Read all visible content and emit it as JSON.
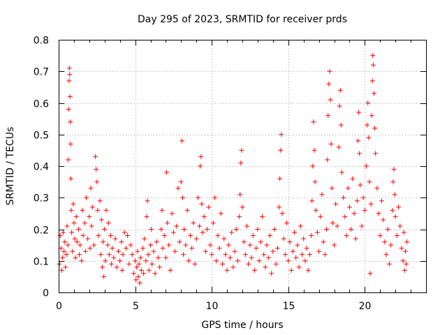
{
  "chart_data": {
    "type": "scatter",
    "title": "Day 295 of 2023, SRMTID for receiver prds",
    "xlabel": "GPS time / hours",
    "ylabel": "SRMTID / TECUs",
    "xlim": [
      0,
      24
    ],
    "ylim": [
      0,
      0.8
    ],
    "x_ticks": [
      0,
      5,
      10,
      15,
      20
    ],
    "x_tick_labels": [
      "0",
      "5",
      "10",
      "15",
      "20"
    ],
    "y_ticks": [
      0,
      0.1,
      0.2,
      0.3,
      0.4,
      0.5,
      0.6,
      0.7,
      0.8
    ],
    "y_tick_labels": [
      "0",
      "0.1",
      "0.2",
      "0.3",
      "0.4",
      "0.5",
      "0.6",
      "0.7",
      "0.8"
    ],
    "grid": true,
    "marker": "plus",
    "color": "#ff0000",
    "series": [
      {
        "name": "SRMTID",
        "points": [
          [
            0.05,
            0.09
          ],
          [
            0.1,
            0.18
          ],
          [
            0.15,
            0.14
          ],
          [
            0.2,
            0.07
          ],
          [
            0.25,
            0.11
          ],
          [
            0.3,
            0.19
          ],
          [
            0.35,
            0.13
          ],
          [
            0.4,
            0.16
          ],
          [
            0.45,
            0.08
          ],
          [
            0.5,
            0.12
          ],
          [
            0.55,
            0.21
          ],
          [
            0.6,
            0.15
          ],
          [
            0.62,
            0.42
          ],
          [
            0.65,
            0.58
          ],
          [
            0.68,
            0.67
          ],
          [
            0.7,
            0.71
          ],
          [
            0.72,
            0.69
          ],
          [
            0.74,
            0.62
          ],
          [
            0.76,
            0.54
          ],
          [
            0.78,
            0.47
          ],
          [
            0.8,
            0.36
          ],
          [
            0.82,
            0.26
          ],
          [
            0.85,
            0.19
          ],
          [
            0.9,
            0.13
          ],
          [
            0.95,
            0.28
          ],
          [
            1.0,
            0.22
          ],
          [
            1.05,
            0.17
          ],
          [
            1.1,
            0.11
          ],
          [
            1.15,
            0.24
          ],
          [
            1.2,
            0.16
          ],
          [
            1.3,
            0.2
          ],
          [
            1.35,
            0.12
          ],
          [
            1.4,
            0.15
          ],
          [
            1.5,
            0.1
          ],
          [
            1.55,
            0.26
          ],
          [
            1.6,
            0.18
          ],
          [
            1.7,
            0.22
          ],
          [
            1.75,
            0.13
          ],
          [
            1.8,
            0.3
          ],
          [
            1.9,
            0.17
          ],
          [
            2.0,
            0.24
          ],
          [
            2.05,
            0.14
          ],
          [
            2.1,
            0.33
          ],
          [
            2.15,
            0.21
          ],
          [
            2.2,
            0.27
          ],
          [
            2.3,
            0.15
          ],
          [
            2.4,
            0.43
          ],
          [
            2.45,
            0.39
          ],
          [
            2.5,
            0.35
          ],
          [
            2.55,
            0.26
          ],
          [
            2.6,
            0.18
          ],
          [
            2.7,
            0.29
          ],
          [
            2.75,
            0.12
          ],
          [
            2.8,
            0.23
          ],
          [
            2.85,
            0.08
          ],
          [
            2.9,
            0.16
          ],
          [
            2.95,
            0.05
          ],
          [
            3.0,
            0.2
          ],
          [
            3.05,
            0.1
          ],
          [
            3.1,
            0.26
          ],
          [
            3.2,
            0.15
          ],
          [
            3.25,
            0.22
          ],
          [
            3.3,
            0.12
          ],
          [
            3.4,
            0.18
          ],
          [
            3.45,
            0.09
          ],
          [
            3.5,
            0.14
          ],
          [
            3.6,
            0.11
          ],
          [
            3.7,
            0.17
          ],
          [
            3.8,
            0.08
          ],
          [
            3.9,
            0.13
          ],
          [
            4.0,
            0.1
          ],
          [
            4.1,
            0.16
          ],
          [
            4.15,
            0.07
          ],
          [
            4.2,
            0.12
          ],
          [
            4.3,
            0.19
          ],
          [
            4.4,
            0.14
          ],
          [
            4.5,
            0.18
          ],
          [
            4.6,
            0.09
          ],
          [
            4.7,
            0.15
          ],
          [
            4.8,
            0.12
          ],
          [
            4.9,
            0.06
          ],
          [
            5.0,
            0.1
          ],
          [
            5.05,
            0.04
          ],
          [
            5.1,
            0.08
          ],
          [
            5.15,
            0.13
          ],
          [
            5.2,
            0.05
          ],
          [
            5.25,
            0.09
          ],
          [
            5.3,
            0.03
          ],
          [
            5.35,
            0.11
          ],
          [
            5.4,
            0.07
          ],
          [
            5.5,
            0.14
          ],
          [
            5.55,
            0.06
          ],
          [
            5.6,
            0.17
          ],
          [
            5.7,
            0.1
          ],
          [
            5.75,
            0.24
          ],
          [
            5.8,
            0.29
          ],
          [
            5.85,
            0.12
          ],
          [
            5.9,
            0.07
          ],
          [
            6.0,
            0.15
          ],
          [
            6.05,
            0.2
          ],
          [
            6.1,
            0.09
          ],
          [
            6.2,
            0.13
          ],
          [
            6.3,
            0.06
          ],
          [
            6.4,
            0.16
          ],
          [
            6.5,
            0.11
          ],
          [
            6.6,
            0.08
          ],
          [
            6.7,
            0.2
          ],
          [
            6.75,
            0.26
          ],
          [
            6.8,
            0.14
          ],
          [
            6.9,
            0.18
          ],
          [
            7.0,
            0.11
          ],
          [
            7.05,
            0.38
          ],
          [
            7.1,
            0.22
          ],
          [
            7.2,
            0.15
          ],
          [
            7.3,
            0.07
          ],
          [
            7.4,
            0.25
          ],
          [
            7.5,
            0.19
          ],
          [
            7.6,
            0.13
          ],
          [
            7.7,
            0.21
          ],
          [
            7.8,
            0.33
          ],
          [
            7.9,
            0.16
          ],
          [
            8.0,
            0.35
          ],
          [
            8.05,
            0.48
          ],
          [
            8.1,
            0.3
          ],
          [
            8.15,
            0.12
          ],
          [
            8.2,
            0.2
          ],
          [
            8.3,
            0.15
          ],
          [
            8.4,
            0.26
          ],
          [
            8.5,
            0.1
          ],
          [
            8.6,
            0.18
          ],
          [
            8.7,
            0.14
          ],
          [
            8.8,
            0.22
          ],
          [
            8.9,
            0.09
          ],
          [
            9.0,
            0.17
          ],
          [
            9.1,
            0.3
          ],
          [
            9.2,
            0.21
          ],
          [
            9.25,
            0.4
          ],
          [
            9.3,
            0.43
          ],
          [
            9.35,
            0.28
          ],
          [
            9.4,
            0.19
          ],
          [
            9.5,
            0.24
          ],
          [
            9.6,
            0.13
          ],
          [
            9.7,
            0.2
          ],
          [
            9.8,
            0.27
          ],
          [
            9.9,
            0.15
          ],
          [
            10.0,
            0.12
          ],
          [
            10.1,
            0.22
          ],
          [
            10.2,
            0.3
          ],
          [
            10.3,
            0.1
          ],
          [
            10.4,
            0.18
          ],
          [
            10.5,
            0.14
          ],
          [
            10.6,
            0.25
          ],
          [
            10.7,
            0.09
          ],
          [
            10.8,
            0.17
          ],
          [
            10.9,
            0.12
          ],
          [
            11.0,
            0.07
          ],
          [
            11.1,
            0.15
          ],
          [
            11.2,
            0.11
          ],
          [
            11.3,
            0.19
          ],
          [
            11.4,
            0.08
          ],
          [
            11.5,
            0.13
          ],
          [
            11.6,
            0.2
          ],
          [
            11.7,
            0.1
          ],
          [
            11.8,
            0.24
          ],
          [
            11.85,
            0.31
          ],
          [
            11.9,
            0.41
          ],
          [
            11.95,
            0.45
          ],
          [
            12.0,
            0.27
          ],
          [
            12.1,
            0.16
          ],
          [
            12.2,
            0.12
          ],
          [
            12.3,
            0.21
          ],
          [
            12.4,
            0.09
          ],
          [
            12.5,
            0.15
          ],
          [
            12.6,
            0.11
          ],
          [
            12.7,
            0.18
          ],
          [
            12.8,
            0.07
          ],
          [
            12.9,
            0.14
          ],
          [
            13.0,
            0.2
          ],
          [
            13.1,
            0.1
          ],
          [
            13.2,
            0.16
          ],
          [
            13.3,
            0.24
          ],
          [
            13.4,
            0.12
          ],
          [
            13.5,
            0.08
          ],
          [
            13.6,
            0.15
          ],
          [
            13.7,
            0.11
          ],
          [
            13.8,
            0.18
          ],
          [
            13.9,
            0.06
          ],
          [
            14.0,
            0.13
          ],
          [
            14.1,
            0.2
          ],
          [
            14.2,
            0.09
          ],
          [
            14.3,
            0.14
          ],
          [
            14.4,
            0.27
          ],
          [
            14.45,
            0.36
          ],
          [
            14.5,
            0.45
          ],
          [
            14.55,
            0.5
          ],
          [
            14.6,
            0.25
          ],
          [
            14.7,
            0.17
          ],
          [
            14.8,
            0.12
          ],
          [
            14.9,
            0.22
          ],
          [
            15.0,
            0.1
          ],
          [
            15.1,
            0.16
          ],
          [
            15.2,
            0.07
          ],
          [
            15.3,
            0.13
          ],
          [
            15.4,
            0.19
          ],
          [
            15.5,
            0.11
          ],
          [
            15.6,
            0.15
          ],
          [
            15.7,
            0.08
          ],
          [
            15.8,
            0.21
          ],
          [
            15.9,
            0.12
          ],
          [
            16.0,
            0.17
          ],
          [
            16.1,
            0.1
          ],
          [
            16.2,
            0.14
          ],
          [
            16.3,
            0.07
          ],
          [
            16.4,
            0.12
          ],
          [
            16.5,
            0.18
          ],
          [
            16.55,
            0.29
          ],
          [
            16.6,
            0.4
          ],
          [
            16.65,
            0.54
          ],
          [
            16.7,
            0.45
          ],
          [
            16.75,
            0.35
          ],
          [
            16.8,
            0.26
          ],
          [
            16.9,
            0.19
          ],
          [
            17.0,
            0.13
          ],
          [
            17.1,
            0.24
          ],
          [
            17.2,
            0.31
          ],
          [
            17.3,
            0.16
          ],
          [
            17.4,
            0.12
          ],
          [
            17.5,
            0.2
          ],
          [
            17.55,
            0.42
          ],
          [
            17.6,
            0.56
          ],
          [
            17.65,
            0.66
          ],
          [
            17.7,
            0.7
          ],
          [
            17.75,
            0.61
          ],
          [
            17.8,
            0.47
          ],
          [
            17.85,
            0.33
          ],
          [
            17.9,
            0.22
          ],
          [
            18.0,
            0.15
          ],
          [
            18.1,
            0.28
          ],
          [
            18.2,
            0.21
          ],
          [
            18.3,
            0.46
          ],
          [
            18.35,
            0.59
          ],
          [
            18.4,
            0.64
          ],
          [
            18.45,
            0.53
          ],
          [
            18.5,
            0.38
          ],
          [
            18.6,
            0.3
          ],
          [
            18.7,
            0.24
          ],
          [
            18.8,
            0.18
          ],
          [
            18.9,
            0.33
          ],
          [
            19.0,
            0.27
          ],
          [
            19.1,
            0.2
          ],
          [
            19.2,
            0.36
          ],
          [
            19.3,
            0.25
          ],
          [
            19.4,
            0.17
          ],
          [
            19.5,
            0.29
          ],
          [
            19.55,
            0.48
          ],
          [
            19.6,
            0.57
          ],
          [
            19.65,
            0.44
          ],
          [
            19.7,
            0.34
          ],
          [
            19.8,
            0.21
          ],
          [
            19.9,
            0.3
          ],
          [
            20.0,
            0.26
          ],
          [
            20.1,
            0.4
          ],
          [
            20.15,
            0.53
          ],
          [
            20.2,
            0.6
          ],
          [
            20.25,
            0.49
          ],
          [
            20.3,
            0.35
          ],
          [
            20.35,
            0.06
          ],
          [
            20.4,
            0.28
          ],
          [
            20.45,
            0.56
          ],
          [
            20.5,
            0.67
          ],
          [
            20.52,
            0.75
          ],
          [
            20.55,
            0.72
          ],
          [
            20.6,
            0.63
          ],
          [
            20.65,
            0.52
          ],
          [
            20.7,
            0.44
          ],
          [
            20.8,
            0.33
          ],
          [
            20.9,
            0.25
          ],
          [
            21.0,
            0.18
          ],
          [
            21.1,
            0.29
          ],
          [
            21.2,
            0.23
          ],
          [
            21.3,
            0.16
          ],
          [
            21.4,
            0.12
          ],
          [
            21.5,
            0.2
          ],
          [
            21.6,
            0.09
          ],
          [
            21.7,
            0.15
          ],
          [
            21.8,
            0.26
          ],
          [
            21.85,
            0.35
          ],
          [
            21.9,
            0.39
          ],
          [
            21.95,
            0.31
          ],
          [
            22.0,
            0.24
          ],
          [
            22.1,
            0.18
          ],
          [
            22.2,
            0.27
          ],
          [
            22.3,
            0.21
          ],
          [
            22.4,
            0.14
          ],
          [
            22.5,
            0.1
          ],
          [
            22.55,
            0.19
          ],
          [
            22.6,
            0.07
          ],
          [
            22.65,
            0.13
          ],
          [
            22.7,
            0.09
          ],
          [
            22.75,
            0.16
          ]
        ]
      }
    ]
  }
}
